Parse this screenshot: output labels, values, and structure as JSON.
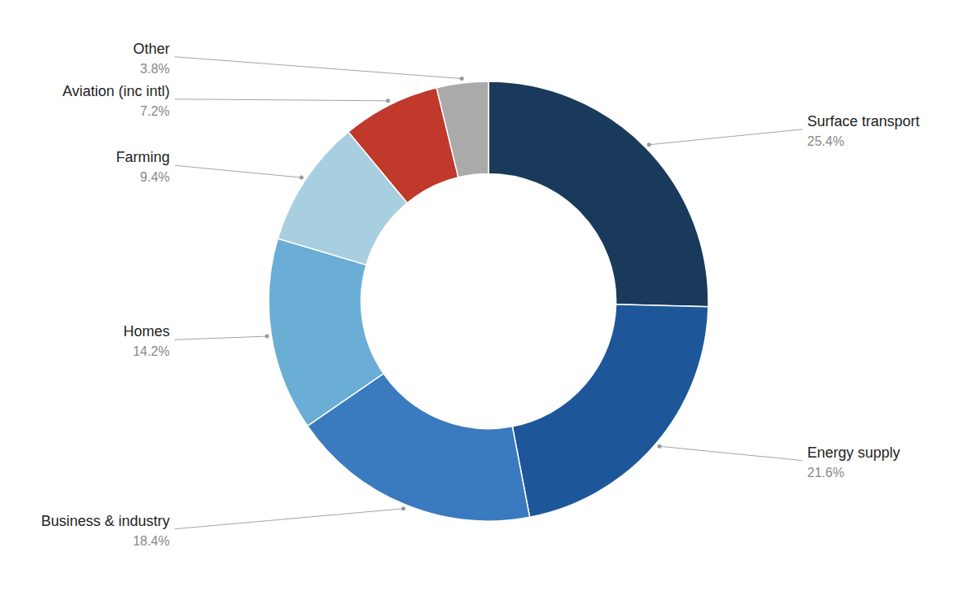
{
  "chart_data": {
    "type": "donut",
    "categories": [
      "Surface transport",
      "Energy supply",
      "Business & industry",
      "Homes",
      "Farming",
      "Aviation (inc intl)",
      "Other"
    ],
    "values": [
      25.4,
      21.6,
      18.4,
      14.2,
      9.4,
      7.2,
      3.8
    ],
    "value_labels": [
      "25.4%",
      "21.6%",
      "18.4%",
      "14.2%",
      "9.4%",
      "7.2%",
      "3.8%"
    ],
    "colors": [
      "#1a3a5c",
      "#1e5799",
      "#3a7abf",
      "#6aadd5",
      "#a8cfe0",
      "#c0392b",
      "#aaaaaa"
    ],
    "data_labels": true
  }
}
